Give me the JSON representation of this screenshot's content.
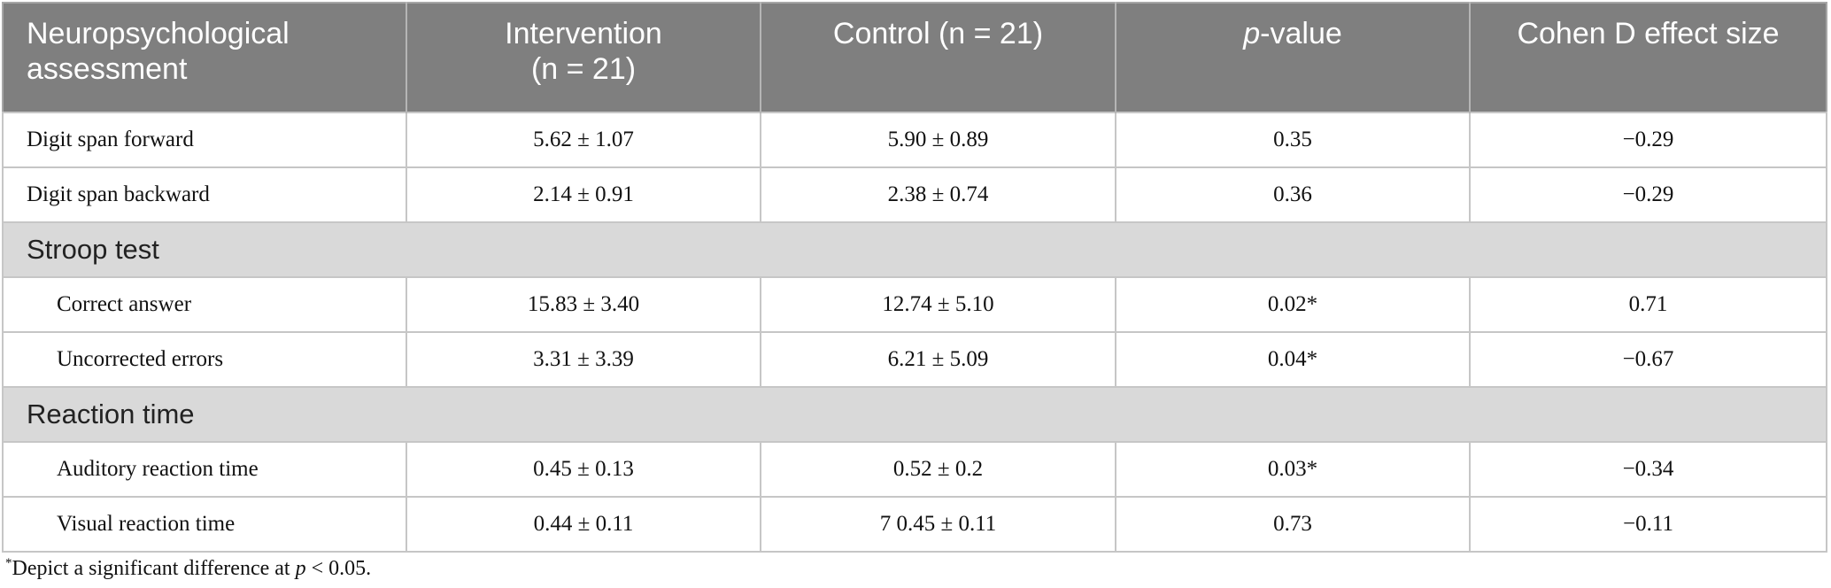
{
  "table": {
    "header": {
      "assessment": [
        "Neuropsychological",
        "assessment"
      ],
      "intervention": [
        "Intervention",
        "(n = 21)"
      ],
      "control": "Control (n = 21)",
      "p_value": {
        "italic": "p",
        "rest": "-value"
      },
      "effect": "Cohen D effect size"
    },
    "rows": [
      {
        "cells": [
          "Digit span forward",
          "5.62 ± 1.07",
          "5.90 ± 0.89",
          "0.35",
          "−0.29"
        ]
      },
      {
        "cells": [
          "Digit span backward",
          "2.14 ± 0.91",
          "2.38 ± 0.74",
          "0.36",
          "−0.29"
        ]
      },
      {
        "section": "Stroop test"
      },
      {
        "cells": [
          "Correct answer",
          "15.83 ± 3.40",
          "12.74 ± 5.10",
          "0.02*",
          "0.71"
        ]
      },
      {
        "cells": [
          "Uncorrected errors",
          "3.31 ± 3.39",
          "6.21 ± 5.09",
          "0.04*",
          "−0.67"
        ]
      },
      {
        "section": "Reaction time"
      },
      {
        "cells": [
          "Auditory reaction time",
          "0.45 ± 0.13",
          "0.52 ± 0.2",
          "0.03*",
          "−0.34"
        ]
      },
      {
        "cells": [
          "Visual reaction time",
          "0.44 ± 0.11",
          "7 0.45 ± 0.11",
          "0.73",
          "−0.11"
        ]
      }
    ]
  },
  "footnote": {
    "mark": "*",
    "text": "Depict a significant difference at ",
    "italic": "p",
    "rest": " < 0.05."
  }
}
